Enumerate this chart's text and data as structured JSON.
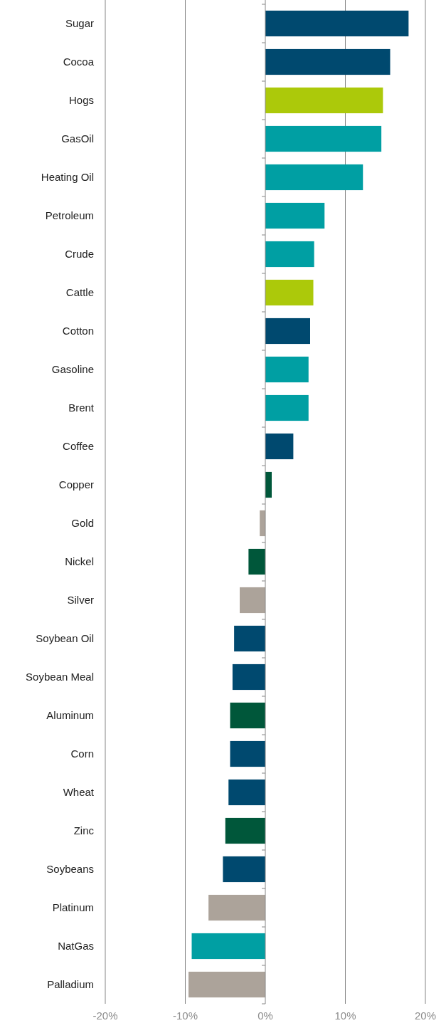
{
  "chart_data": {
    "type": "bar",
    "orientation": "horizontal",
    "categories": [
      "Sugar",
      "Cocoa",
      "Hogs",
      "GasOil",
      "Heating Oil",
      "Petroleum",
      "Crude",
      "Cattle",
      "Cotton",
      "Gasoline",
      "Brent",
      "Coffee",
      "Copper",
      "Gold",
      "Nickel",
      "Silver",
      "Soybean Oil",
      "Soybean Meal",
      "Aluminum",
      "Corn",
      "Wheat",
      "Zinc",
      "Soybeans",
      "Platinum",
      "NatGas",
      "Palladium"
    ],
    "values": [
      17.9,
      15.6,
      14.7,
      14.5,
      12.2,
      7.4,
      6.1,
      6.0,
      5.6,
      5.4,
      5.4,
      3.5,
      0.8,
      -0.7,
      -2.1,
      -3.2,
      -3.9,
      -4.1,
      -4.4,
      -4.4,
      -4.6,
      -5.0,
      -5.3,
      -7.1,
      -9.2,
      -9.6
    ],
    "colors": [
      "#00496f",
      "#00496f",
      "#acc90a",
      "#009fa3",
      "#009fa3",
      "#009fa3",
      "#009fa3",
      "#acc90a",
      "#00496f",
      "#009fa3",
      "#009fa3",
      "#00496f",
      "#00573a",
      "#aca39a",
      "#00573a",
      "#aca39a",
      "#00496f",
      "#00496f",
      "#00573a",
      "#00496f",
      "#00496f",
      "#00573a",
      "#00496f",
      "#aca39a",
      "#009fa3",
      "#aca39a"
    ],
    "xlim": [
      -20,
      20
    ],
    "xticks": [
      {
        "value": -20,
        "label": "-20%"
      },
      {
        "value": -10,
        "label": "-10%"
      },
      {
        "value": 0,
        "label": "0%"
      },
      {
        "value": 10,
        "label": "10%"
      },
      {
        "value": 20,
        "label": "20%"
      }
    ],
    "grid": "x"
  }
}
